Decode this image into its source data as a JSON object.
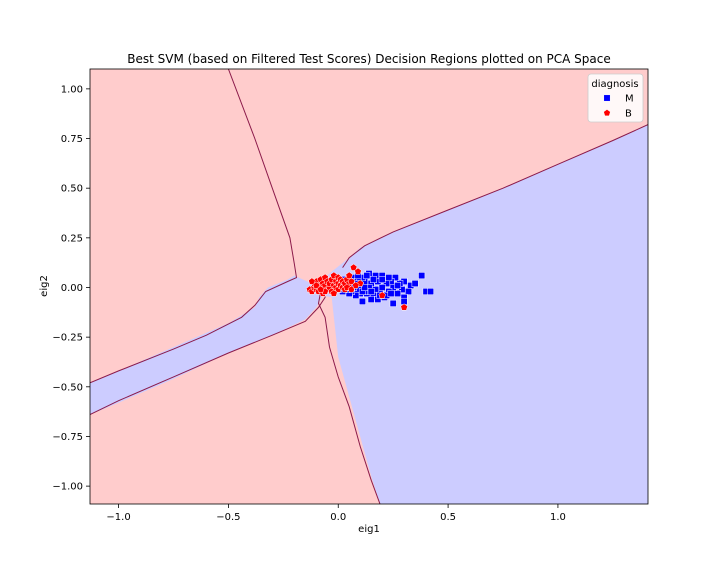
{
  "chart_data": {
    "type": "scatter",
    "title": "Best SVM (based on Filtered Test Scores) Decision Regions plotted on PCA Space",
    "xlabel": "eig1",
    "ylabel": "eig2",
    "xlim": [
      -1.13,
      1.41
    ],
    "ylim": [
      -1.09,
      1.1
    ],
    "xticks": [
      -1.0,
      -0.5,
      0.0,
      0.5,
      1.0
    ],
    "xtick_labels": [
      "−1.0",
      "−0.5",
      "0.0",
      "0.5",
      "1.0"
    ],
    "yticks": [
      1.0,
      0.75,
      0.5,
      0.25,
      0.0,
      -0.25,
      -0.5,
      -0.75,
      -1.0
    ],
    "ytick_labels": [
      "1.00",
      "0.75",
      "0.50",
      "0.25",
      "0.00",
      "−0.25",
      "−0.50",
      "−0.75",
      "−1.00"
    ],
    "grid": false,
    "legend": {
      "title": "diagnosis",
      "placement": "top-right",
      "entries": [
        {
          "label": "M",
          "marker": "square",
          "color": "#0000ff"
        },
        {
          "label": "B",
          "marker": "pentagon",
          "color": "#ff0000"
        }
      ]
    },
    "regions": {
      "M_color": "#ccccff",
      "B_color": "#ffcccc",
      "boundary_color": "#8b1a4a",
      "B_region_1": [
        [
          -0.5,
          1.1
        ],
        [
          -0.38,
          0.75
        ],
        [
          -0.3,
          0.5
        ],
        [
          -0.22,
          0.25
        ],
        [
          -0.2,
          0.1
        ],
        [
          -0.2,
          0.06
        ],
        [
          -0.23,
          0.04
        ],
        [
          -0.32,
          0.0
        ],
        [
          -0.36,
          -0.05
        ],
        [
          -0.38,
          -0.1
        ],
        [
          -0.5,
          -0.18
        ],
        [
          -0.75,
          -0.3
        ],
        [
          -1.0,
          -0.42
        ],
        [
          -1.13,
          -0.48
        ],
        [
          -1.13,
          -0.64
        ],
        [
          -1.0,
          -0.58
        ],
        [
          -0.75,
          -0.46
        ],
        [
          -0.5,
          -0.33
        ],
        [
          -0.3,
          -0.24
        ],
        [
          -0.15,
          -0.16
        ],
        [
          -0.1,
          -0.1
        ],
        [
          -0.08,
          -0.06
        ],
        [
          -0.07,
          -0.04
        ],
        [
          -0.03,
          -0.05
        ],
        [
          0.0,
          -0.35
        ],
        [
          0.05,
          -0.55
        ],
        [
          0.1,
          -0.75
        ],
        [
          0.15,
          -0.95
        ],
        [
          0.19,
          -1.09
        ],
        [
          0.19,
          -1.09
        ],
        [
          -1.13,
          -1.09
        ],
        [
          -1.13,
          1.1
        ]
      ],
      "B_region_2": [
        [
          -0.5,
          1.1
        ],
        [
          1.41,
          1.1
        ],
        [
          1.41,
          0.82
        ],
        [
          1.25,
          0.74
        ],
        [
          1.0,
          0.62
        ],
        [
          0.75,
          0.5
        ],
        [
          0.5,
          0.39
        ],
        [
          0.25,
          0.28
        ],
        [
          0.1,
          0.2
        ],
        [
          0.05,
          0.15
        ],
        [
          -0.03,
          0.08
        ],
        [
          -0.07,
          0.04
        ],
        [
          -0.12,
          0.02
        ],
        [
          -0.2,
          0.06
        ],
        [
          -0.22,
          0.25
        ],
        [
          -0.3,
          0.5
        ],
        [
          -0.38,
          0.75
        ]
      ],
      "boundary_lines": [
        [
          [
            -0.5,
            1.1
          ],
          [
            -0.38,
            0.75
          ],
          [
            -0.3,
            0.5
          ],
          [
            -0.22,
            0.25
          ],
          [
            -0.2,
            0.12
          ],
          [
            -0.19,
            0.05
          ],
          [
            -0.23,
            0.03
          ],
          [
            -0.33,
            -0.02
          ],
          [
            -0.38,
            -0.09
          ],
          [
            -0.44,
            -0.15
          ],
          [
            -0.6,
            -0.24
          ],
          [
            -0.75,
            -0.31
          ],
          [
            -1.0,
            -0.42
          ],
          [
            -1.13,
            -0.48
          ]
        ],
        [
          [
            -1.13,
            -0.64
          ],
          [
            -1.0,
            -0.57
          ],
          [
            -0.75,
            -0.45
          ],
          [
            -0.5,
            -0.33
          ],
          [
            -0.3,
            -0.24
          ],
          [
            -0.15,
            -0.17
          ],
          [
            -0.09,
            -0.1
          ],
          [
            -0.06,
            -0.05
          ],
          [
            -0.07,
            0.01
          ],
          [
            -0.1,
            0.02
          ]
        ],
        [
          [
            1.41,
            0.82
          ],
          [
            1.25,
            0.74
          ],
          [
            1.0,
            0.62
          ],
          [
            0.75,
            0.5
          ],
          [
            0.5,
            0.39
          ],
          [
            0.25,
            0.28
          ],
          [
            0.12,
            0.21
          ],
          [
            0.05,
            0.15
          ],
          [
            0.02,
            0.1
          ]
        ],
        [
          [
            -0.08,
            -0.02
          ],
          [
            -0.09,
            -0.08
          ],
          [
            -0.06,
            -0.15
          ],
          [
            -0.04,
            -0.3
          ],
          [
            0.0,
            -0.45
          ],
          [
            0.05,
            -0.6
          ],
          [
            0.1,
            -0.8
          ],
          [
            0.15,
            -0.97
          ],
          [
            0.19,
            -1.09
          ]
        ]
      ]
    },
    "series": [
      {
        "name": "M",
        "marker": "square",
        "color": "#0000ff",
        "points": [
          [
            0.4,
            -0.02
          ],
          [
            0.42,
            -0.02
          ],
          [
            0.38,
            0.06
          ],
          [
            0.33,
            0.01
          ],
          [
            0.32,
            -0.02
          ],
          [
            0.3,
            -0.05
          ],
          [
            0.3,
            0.03
          ],
          [
            0.29,
            -0.01
          ],
          [
            0.28,
            0.02
          ],
          [
            0.27,
            -0.03
          ],
          [
            0.26,
            0.05
          ],
          [
            0.25,
            0.0
          ],
          [
            0.25,
            -0.08
          ],
          [
            0.24,
            0.03
          ],
          [
            0.23,
            -0.02
          ],
          [
            0.22,
            0.02
          ],
          [
            0.21,
            -0.05
          ],
          [
            0.2,
            0.06
          ],
          [
            0.2,
            0.0
          ],
          [
            0.19,
            -0.03
          ],
          [
            0.18,
            0.03
          ],
          [
            0.17,
            -0.01
          ],
          [
            0.17,
            0.06
          ],
          [
            0.16,
            -0.04
          ],
          [
            0.15,
            0.02
          ],
          [
            0.15,
            -0.06
          ],
          [
            0.14,
            0.0
          ],
          [
            0.14,
            0.07
          ],
          [
            0.13,
            -0.03
          ],
          [
            0.12,
            0.03
          ],
          [
            0.12,
            -0.02
          ],
          [
            0.11,
            0.05
          ],
          [
            0.11,
            -0.07
          ],
          [
            0.1,
            0.01
          ],
          [
            0.1,
            -0.03
          ],
          [
            0.09,
            0.04
          ],
          [
            0.09,
            -0.01
          ],
          [
            0.08,
            0.02
          ],
          [
            0.08,
            -0.04
          ],
          [
            0.07,
            0.0
          ],
          [
            0.07,
            0.05
          ],
          [
            0.06,
            -0.02
          ],
          [
            0.06,
            0.03
          ],
          [
            0.05,
            0.01
          ],
          [
            0.05,
            -0.03
          ],
          [
            0.04,
            0.02
          ],
          [
            0.04,
            -0.01
          ],
          [
            0.03,
            0.0
          ],
          [
            0.03,
            0.04
          ],
          [
            0.02,
            -0.02
          ],
          [
            0.02,
            0.02
          ],
          [
            0.01,
            0.01
          ],
          [
            0.0,
            -0.01
          ],
          [
            -0.01,
            0.02
          ],
          [
            0.18,
            -0.06
          ],
          [
            0.22,
            -0.04
          ],
          [
            0.27,
            0.01
          ],
          [
            0.13,
            0.06
          ],
          [
            0.16,
            0.04
          ],
          [
            0.19,
            -0.04
          ],
          [
            0.24,
            -0.03
          ],
          [
            0.11,
            -0.02
          ],
          [
            0.3,
            -0.07
          ],
          [
            0.35,
            0.02
          ],
          [
            0.2,
            0.04
          ],
          [
            0.23,
            0.05
          ],
          [
            0.15,
            -0.02
          ],
          [
            0.12,
            0.0
          ],
          [
            0.09,
            0.06
          ],
          [
            0.06,
            0.0
          ]
        ]
      },
      {
        "name": "B",
        "marker": "pentagon",
        "color": "#ff0000",
        "points": [
          [
            -0.13,
            -0.01
          ],
          [
            -0.12,
            -0.02
          ],
          [
            -0.11,
            0.0
          ],
          [
            -0.11,
            0.02
          ],
          [
            -0.1,
            -0.01
          ],
          [
            -0.1,
            0.03
          ],
          [
            -0.09,
            0.01
          ],
          [
            -0.09,
            -0.02
          ],
          [
            -0.08,
            0.04
          ],
          [
            -0.08,
            0.0
          ],
          [
            -0.07,
            0.02
          ],
          [
            -0.07,
            -0.03
          ],
          [
            -0.06,
            0.01
          ],
          [
            -0.06,
            0.05
          ],
          [
            -0.05,
            -0.01
          ],
          [
            -0.05,
            0.03
          ],
          [
            -0.04,
            0.0
          ],
          [
            -0.04,
            0.02
          ],
          [
            -0.03,
            -0.02
          ],
          [
            -0.03,
            0.04
          ],
          [
            -0.02,
            0.01
          ],
          [
            -0.02,
            0.06
          ],
          [
            -0.01,
            0.0
          ],
          [
            -0.01,
            0.03
          ],
          [
            0.0,
            -0.01
          ],
          [
            0.0,
            0.02
          ],
          [
            0.0,
            0.05
          ],
          [
            0.01,
            0.01
          ],
          [
            0.01,
            0.04
          ],
          [
            0.02,
            0.0
          ],
          [
            0.02,
            0.03
          ],
          [
            0.03,
            0.02
          ],
          [
            0.03,
            -0.01
          ],
          [
            0.04,
            0.04
          ],
          [
            0.05,
            0.02
          ],
          [
            0.06,
            0.03
          ],
          [
            0.07,
            0.1
          ],
          [
            0.09,
            0.08
          ],
          [
            0.05,
            0.06
          ],
          [
            0.3,
            -0.1
          ],
          [
            0.2,
            -0.04
          ],
          [
            0.1,
            0.02
          ],
          [
            -0.12,
            0.03
          ],
          [
            -0.06,
            -0.02
          ],
          [
            -0.02,
            -0.03
          ],
          [
            0.04,
            0.0
          ],
          [
            -0.1,
            0.01
          ],
          [
            -0.08,
            -0.01
          ],
          [
            0.06,
            -0.01
          ],
          [
            0.08,
            0.01
          ]
        ]
      }
    ]
  }
}
